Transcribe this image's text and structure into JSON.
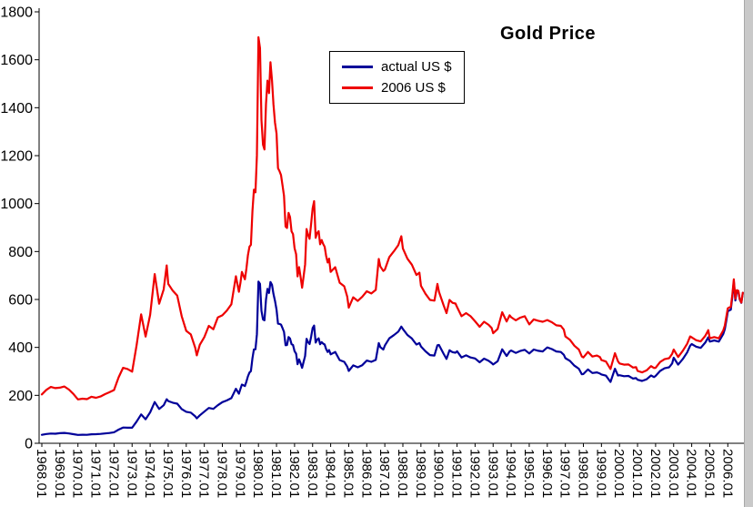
{
  "chart_data": {
    "type": "line",
    "title": "Gold Price",
    "legend_position": "top-center",
    "grid": false,
    "x_axis": {
      "start_year": 1968,
      "end_year": 2006,
      "labels": [
        "1968.01",
        "1969.01",
        "1970.01",
        "1971.01",
        "1972.01",
        "1973.01",
        "1974.01",
        "1975.01",
        "1976.01",
        "1977.01",
        "1978.01",
        "1979.01",
        "1980.01",
        "1981.01",
        "1982.01",
        "1983.01",
        "1984.01",
        "1985.01",
        "1986.01",
        "1987.01",
        "1988.01",
        "1989.01",
        "1990.01",
        "1991.01",
        "1992.01",
        "1993.01",
        "1994.01",
        "1995.01",
        "1996.01",
        "1997.01",
        "1998.01",
        "1999.01",
        "2000.01",
        "2001.01",
        "2002.01",
        "2003.01",
        "2004.01",
        "2005.01",
        "2006.01"
      ]
    },
    "y_axis": {
      "min": 0,
      "max": 1800,
      "step": 200,
      "tick_labels": [
        "0",
        "200",
        "400",
        "600",
        "800",
        "1000",
        "1200",
        "1400",
        "1600",
        "1800"
      ]
    },
    "series": [
      {
        "key": "nominal",
        "name": "actual US $",
        "color": "#000099"
      },
      {
        "key": "real",
        "name": "2006 US $",
        "color": "#ee0000"
      }
    ],
    "samples": [
      {
        "y": 1968,
        "m": [
          0,
          3,
          6,
          9
        ],
        "nominal": [
          35.2,
          38.6,
          40.7,
          39.8
        ],
        "real": [
          204,
          223,
          235,
          230
        ]
      },
      {
        "y": 1969,
        "m": [
          0,
          3,
          6,
          9
        ],
        "nominal": [
          42.3,
          43.3,
          41.0,
          37.8
        ],
        "real": [
          232,
          237,
          224,
          206
        ]
      },
      {
        "y": 1970,
        "m": [
          0,
          3,
          6,
          9
        ],
        "nominal": [
          34.9,
          35.6,
          35.3,
          37.5
        ],
        "real": [
          183,
          186,
          184,
          194
        ]
      },
      {
        "y": 1971,
        "m": [
          0,
          3,
          6,
          9
        ],
        "nominal": [
          37.9,
          39.0,
          41.2,
          42.9
        ],
        "real": [
          190,
          195,
          205,
          213
        ]
      },
      {
        "y": 1972,
        "m": [
          0,
          3,
          6,
          9
        ],
        "nominal": [
          45.8,
          57.0,
          65.7,
          64.9
        ],
        "real": [
          222,
          275,
          315,
          310
        ]
      },
      {
        "y": 1973,
        "m": [
          0,
          3,
          6,
          9
        ],
        "nominal": [
          65.1,
          90.5,
          120.2,
          100.1
        ],
        "real": [
          299,
          409,
          538,
          445
        ]
      },
      {
        "y": 1974,
        "m": [
          0,
          3,
          6,
          9,
          11
        ],
        "nominal": [
          129.2,
          172.2,
          143.0,
          158.8,
          183.9
        ],
        "real": [
          536,
          706,
          582,
          642,
          742
        ]
      },
      {
        "y": 1975,
        "m": [
          0,
          3,
          6,
          9
        ],
        "nominal": [
          176.3,
          169.5,
          165.1,
          142.9
        ],
        "real": [
          665,
          637,
          616,
          530
        ]
      },
      {
        "y": 1976,
        "m": [
          0,
          3,
          6,
          7,
          9
        ],
        "nominal": [
          131.5,
          127.9,
          112.5,
          104.0,
          116.7
        ],
        "real": [
          469,
          454,
          398,
          367,
          411
        ]
      },
      {
        "y": 1977,
        "m": [
          0,
          3,
          6,
          9
        ],
        "nominal": [
          132.3,
          147.3,
          143.4,
          158.9
        ],
        "real": [
          443,
          490,
          476,
          525
        ]
      },
      {
        "y": 1978,
        "m": [
          0,
          3,
          6,
          9,
          11
        ],
        "nominal": [
          171.5,
          178.8,
          188.2,
          227.4,
          207.0
        ],
        "real": [
          534,
          554,
          580,
          697,
          632
        ]
      },
      {
        "y": 1979,
        "m": [
          0,
          1,
          2,
          3,
          4,
          5,
          6,
          7,
          8,
          9,
          10,
          11
        ],
        "nominal": [
          227,
          245,
          242,
          239,
          258,
          279,
          295,
          301,
          355,
          392,
          392,
          455
        ],
        "real": [
          670,
          715,
          699,
          684,
          730,
          784,
          820,
          828,
          969,
          1058,
          1047,
          1201
        ]
      },
      {
        "y": 1980,
        "m": [
          0,
          1,
          2,
          3,
          4,
          5,
          6,
          7,
          8,
          9,
          10,
          11
        ],
        "nominal": [
          675,
          665,
          553,
          517,
          513,
          600,
          644,
          627,
          673,
          661,
          623,
          594
        ],
        "real": [
          1694,
          1649,
          1349,
          1246,
          1226,
          1416,
          1513,
          1461,
          1590,
          1514,
          1414,
          1337
        ]
      },
      {
        "y": 1981,
        "m": [
          0,
          1,
          2,
          3,
          4,
          5,
          6,
          7,
          8,
          9,
          10,
          11
        ],
        "nominal": [
          557,
          499,
          498,
          495,
          480,
          465,
          409,
          410,
          443,
          437,
          413,
          410
        ],
        "real": [
          1292,
          1148,
          1135,
          1119,
          1075,
          1032,
          904,
          898,
          961,
          944,
          884,
          873
        ]
      },
      {
        "y": 1982,
        "m": [
          0,
          1,
          2,
          3,
          4,
          5,
          6,
          7,
          8,
          9,
          10,
          11
        ],
        "nominal": [
          384,
          374,
          330,
          350,
          334,
          315,
          339,
          364,
          436,
          422,
          414,
          444
        ],
        "real": [
          814,
          789,
          696,
          735,
          695,
          649,
          695,
          746,
          894,
          869,
          853,
          915
        ]
      },
      {
        "y": 1983,
        "m": [
          0,
          1,
          2,
          3,
          4,
          5,
          6,
          7,
          8,
          9,
          10,
          11
        ],
        "nominal": [
          481,
          491,
          420,
          432,
          438,
          413,
          422,
          416,
          412,
          393,
          381,
          389
        ],
        "real": [
          981,
          1010,
          857,
          877,
          885,
          830,
          848,
          832,
          820,
          782,
          754,
          770
        ]
      },
      {
        "y": 1984,
        "m": [
          0,
          3,
          6,
          9,
          11
        ],
        "nominal": [
          371,
          381,
          347,
          340,
          320
        ],
        "real": [
          715,
          735,
          670,
          655,
          612
        ]
      },
      {
        "y": 1985,
        "m": [
          0,
          3,
          6,
          9
        ],
        "nominal": [
          302,
          325,
          317,
          326
        ],
        "real": [
          566,
          609,
          594,
          611
        ]
      },
      {
        "y": 1986,
        "m": [
          0,
          3,
          6,
          8,
          9,
          11
        ],
        "nominal": [
          345,
          340,
          348,
          418,
          401,
          391
        ],
        "real": [
          634,
          625,
          640,
          769,
          738,
          719
        ]
      },
      {
        "y": 1987,
        "m": [
          0,
          3,
          6,
          9,
          11
        ],
        "nominal": [
          408,
          438,
          451,
          466,
          487
        ],
        "real": [
          724,
          777,
          801,
          827,
          864
        ]
      },
      {
        "y": 1988,
        "m": [
          0,
          3,
          6,
          9,
          11
        ],
        "nominal": [
          477,
          452,
          437,
          412,
          418
        ],
        "real": [
          813,
          770,
          745,
          702,
          712
        ]
      },
      {
        "y": 1989,
        "m": [
          0,
          3,
          6,
          9,
          11
        ],
        "nominal": [
          404,
          384,
          368,
          366,
          409
        ],
        "real": [
          657,
          624,
          598,
          595,
          665
        ]
      },
      {
        "y": 1990,
        "m": [
          0,
          3,
          5,
          7,
          9,
          11
        ],
        "nominal": [
          410,
          374,
          352,
          388,
          380,
          378
        ],
        "real": [
          632,
          577,
          543,
          598,
          586,
          583
        ]
      },
      {
        "y": 1991,
        "m": [
          0,
          3,
          6,
          9
        ],
        "nominal": [
          384,
          358,
          367,
          358
        ],
        "real": [
          568,
          530,
          543,
          530
        ]
      },
      {
        "y": 1992,
        "m": [
          0,
          3,
          6,
          9,
          11
        ],
        "nominal": [
          354,
          338,
          353,
          344,
          335
        ],
        "real": [
          509,
          486,
          507,
          494,
          481
        ]
      },
      {
        "y": 1993,
        "m": [
          0,
          3,
          6,
          9,
          11
        ],
        "nominal": [
          329,
          342,
          392,
          364,
          383
        ],
        "real": [
          459,
          477,
          547,
          508,
          534
        ]
      },
      {
        "y": 1994,
        "m": [
          0,
          3,
          6,
          9
        ],
        "nominal": [
          387,
          377,
          385,
          390
        ],
        "real": [
          526,
          513,
          524,
          530
        ]
      },
      {
        "y": 1995,
        "m": [
          0,
          3,
          6,
          9
        ],
        "nominal": [
          375,
          391,
          386,
          383
        ],
        "real": [
          496,
          517,
          511,
          507
        ]
      },
      {
        "y": 1996,
        "m": [
          0,
          3,
          6,
          9,
          11
        ],
        "nominal": [
          400,
          393,
          383,
          381,
          369
        ],
        "real": [
          514,
          505,
          492,
          490,
          474
        ]
      },
      {
        "y": 1997,
        "m": [
          0,
          3,
          6,
          9,
          11
        ],
        "nominal": [
          355,
          344,
          324,
          311,
          288
        ],
        "real": [
          446,
          432,
          407,
          391,
          362
        ]
      },
      {
        "y": 1998,
        "m": [
          0,
          3,
          6,
          9,
          11
        ],
        "nominal": [
          289,
          308,
          293,
          296,
          291
        ],
        "real": [
          358,
          381,
          362,
          366,
          360
        ]
      },
      {
        "y": 1999,
        "m": [
          0,
          3,
          6,
          9,
          11
        ],
        "nominal": [
          287,
          282,
          256,
          311,
          283
        ],
        "real": [
          347,
          341,
          310,
          376,
          342
        ]
      },
      {
        "y": 2000,
        "m": [
          0,
          3,
          6,
          9,
          11
        ],
        "nominal": [
          284,
          280,
          281,
          270,
          272
        ],
        "real": [
          333,
          328,
          329,
          316,
          318
        ]
      },
      {
        "y": 2001,
        "m": [
          0,
          3,
          6,
          9,
          11
        ],
        "nominal": [
          265,
          260,
          267,
          283,
          276
        ],
        "real": [
          302,
          296,
          304,
          322,
          314
        ]
      },
      {
        "y": 2002,
        "m": [
          0,
          3,
          6,
          9,
          11
        ],
        "nominal": [
          281,
          302,
          313,
          317,
          333
        ],
        "real": [
          315,
          339,
          351,
          355,
          373
        ]
      },
      {
        "y": 2003,
        "m": [
          0,
          3,
          6,
          9,
          11
        ],
        "nominal": [
          357,
          328,
          351,
          379,
          407
        ],
        "real": [
          391,
          360,
          385,
          415,
          446
        ]
      },
      {
        "y": 2004,
        "m": [
          0,
          3,
          6,
          9,
          11
        ],
        "nominal": [
          414,
          403,
          398,
          420,
          442
        ],
        "real": [
          442,
          430,
          425,
          448,
          472
        ]
      },
      {
        "y": 2005,
        "m": [
          0,
          3,
          6,
          9,
          10,
          11
        ],
        "nominal": [
          424,
          429,
          424,
          456,
          476,
          510
        ],
        "real": [
          438,
          443,
          438,
          471,
          491,
          526
        ]
      },
      {
        "y": 2006,
        "m": [
          0,
          1,
          2,
          3,
          4,
          5,
          6,
          7,
          8,
          9,
          10
        ],
        "nominal": [
          550,
          555,
          557,
          611,
          675,
          596,
          634,
          632,
          599,
          586,
          628
        ],
        "real": [
          563,
          567,
          568,
          621,
          684,
          603,
          639,
          636,
          601,
          587,
          628
        ]
      }
    ]
  }
}
